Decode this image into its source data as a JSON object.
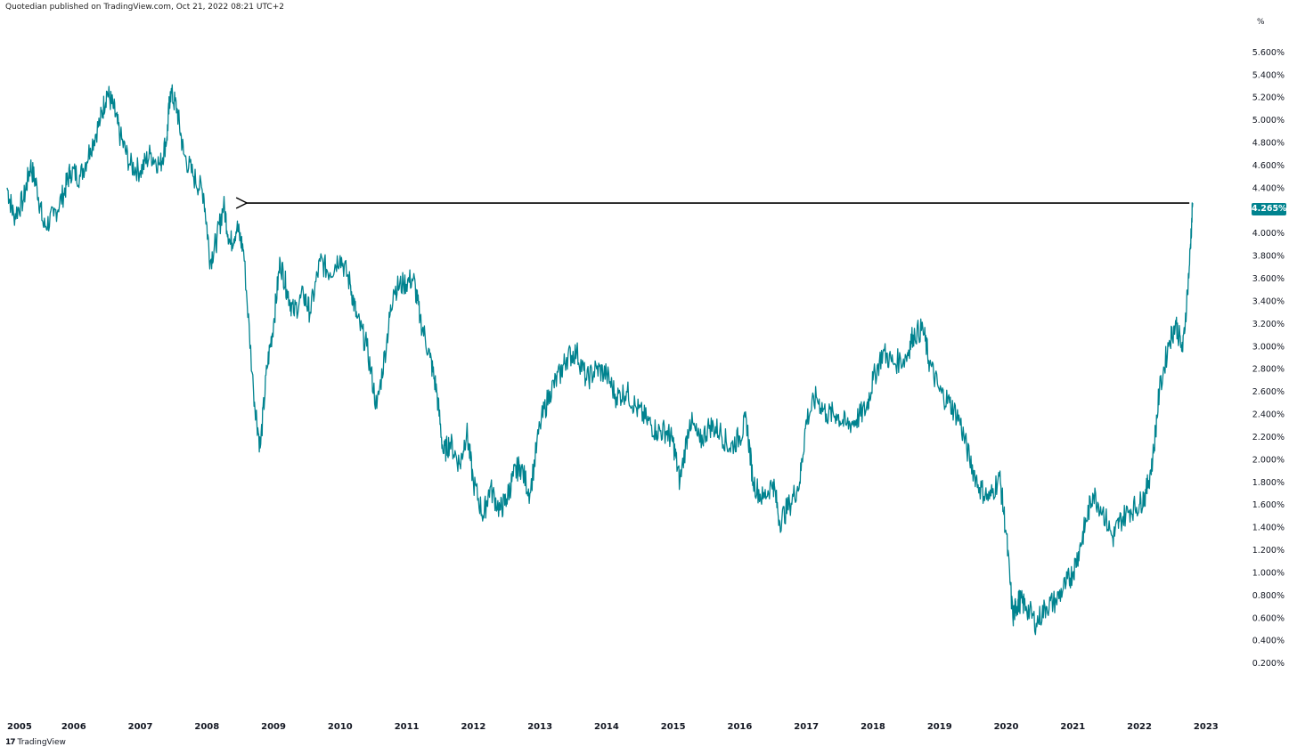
{
  "header": {
    "publisher_text": "Quotedian published on TradingView.com, Oct 21, 2022 08:21 UTC+2"
  },
  "footer": {
    "logo_text": "TradingView",
    "logo_mark": "17"
  },
  "colors": {
    "line": "#00838f",
    "arrow": "#000000",
    "badge": "#00838f"
  },
  "chart_data": {
    "type": "line",
    "title": "",
    "xlabel": "",
    "ylabel": "%",
    "ylim": [
      0.0,
      5.8
    ],
    "xlim": [
      2005.0,
      2023.35
    ],
    "y_ticks": [
      "0.200%",
      "0.400%",
      "0.600%",
      "0.800%",
      "1.000%",
      "1.200%",
      "1.400%",
      "1.600%",
      "1.800%",
      "2.000%",
      "2.200%",
      "2.400%",
      "2.600%",
      "2.800%",
      "3.000%",
      "3.200%",
      "3.400%",
      "3.600%",
      "3.800%",
      "4.000%",
      "4.200%",
      "4.400%",
      "4.600%",
      "4.800%",
      "5.000%",
      "5.200%",
      "5.400%",
      "5.600%"
    ],
    "y_tick_values": [
      0.2,
      0.4,
      0.6,
      0.8,
      1.0,
      1.2,
      1.4,
      1.6,
      1.8,
      2.0,
      2.2,
      2.4,
      2.6,
      2.8,
      3.0,
      3.2,
      3.4,
      3.6,
      3.8,
      4.0,
      4.2,
      4.4,
      4.6,
      4.8,
      5.0,
      5.2,
      5.4,
      5.6
    ],
    "x_ticks": [
      "2005",
      "2006",
      "2007",
      "2008",
      "2009",
      "2010",
      "2011",
      "2012",
      "2013",
      "2014",
      "2015",
      "2016",
      "2017",
      "2018",
      "2019",
      "2020",
      "2021",
      "2022",
      "2023"
    ],
    "x_tick_values": [
      2005,
      2006,
      2007,
      2008,
      2009,
      2010,
      2011,
      2012,
      2013,
      2014,
      2015,
      2016,
      2017,
      2018,
      2019,
      2020,
      2021,
      2022,
      2023
    ],
    "last_value_label": "4.265%",
    "last_value": 4.265,
    "series": [
      {
        "x": [
          2005.0,
          2005.1,
          2005.25,
          2005.35,
          2005.45,
          2005.55,
          2005.7,
          2005.85,
          2005.95,
          2006.1,
          2006.25,
          2006.4,
          2006.5,
          2006.6,
          2006.7,
          2006.85,
          2007.0,
          2007.15,
          2007.3,
          2007.4,
          2007.45,
          2007.55,
          2007.65,
          2007.8,
          2007.95,
          2008.05,
          2008.15,
          2008.25,
          2008.35,
          2008.45,
          2008.55,
          2008.7,
          2008.8,
          2008.9,
          2009.0,
          2009.1,
          2009.2,
          2009.3,
          2009.45,
          2009.55,
          2009.7,
          2009.85,
          2010.0,
          2010.15,
          2010.25,
          2010.4,
          2010.55,
          2010.7,
          2010.8,
          2010.95,
          2011.1,
          2011.2,
          2011.35,
          2011.45,
          2011.55,
          2011.65,
          2011.8,
          2011.9,
          2012.0,
          2012.15,
          2012.25,
          2012.4,
          2012.5,
          2012.6,
          2012.7,
          2012.85,
          2013.0,
          2013.15,
          2013.3,
          2013.4,
          2013.55,
          2013.7,
          2013.85,
          2014.0,
          2014.15,
          2014.3,
          2014.45,
          2014.6,
          2014.75,
          2014.9,
          2015.0,
          2015.1,
          2015.25,
          2015.4,
          2015.55,
          2015.7,
          2015.85,
          2016.0,
          2016.1,
          2016.2,
          2016.35,
          2016.5,
          2016.6,
          2016.75,
          2016.9,
          2017.0,
          2017.15,
          2017.3,
          2017.45,
          2017.6,
          2017.75,
          2017.9,
          2018.0,
          2018.15,
          2018.3,
          2018.5,
          2018.6,
          2018.75,
          2018.85,
          2019.0,
          2019.15,
          2019.3,
          2019.45,
          2019.6,
          2019.75,
          2019.9,
          2020.0,
          2020.1,
          2020.15,
          2020.2,
          2020.3,
          2020.45,
          2020.6,
          2020.75,
          2020.9,
          2021.0,
          2021.1,
          2021.2,
          2021.3,
          2021.45,
          2021.6,
          2021.7,
          2021.85,
          2022.0,
          2022.1,
          2022.2,
          2022.3,
          2022.45,
          2022.55,
          2022.65,
          2022.75,
          2022.8
        ],
        "values": [
          4.4,
          4.15,
          4.3,
          4.6,
          4.4,
          4.05,
          4.15,
          4.35,
          4.55,
          4.5,
          4.75,
          5.0,
          5.25,
          5.1,
          4.85,
          4.6,
          4.55,
          4.7,
          4.6,
          4.85,
          5.25,
          5.1,
          4.7,
          4.5,
          4.35,
          3.75,
          3.95,
          4.25,
          3.9,
          4.05,
          3.85,
          2.6,
          2.1,
          2.8,
          3.2,
          3.75,
          3.5,
          3.3,
          3.45,
          3.3,
          3.75,
          3.65,
          3.8,
          3.55,
          3.25,
          3.0,
          2.45,
          3.05,
          3.5,
          3.55,
          3.6,
          3.25,
          2.9,
          2.6,
          2.05,
          2.15,
          1.95,
          2.25,
          1.8,
          1.5,
          1.75,
          1.55,
          1.65,
          1.85,
          1.95,
          1.7,
          2.3,
          2.6,
          2.75,
          2.9,
          2.95,
          2.7,
          2.8,
          2.75,
          2.55,
          2.6,
          2.45,
          2.35,
          2.25,
          2.25,
          2.15,
          1.8,
          2.35,
          2.15,
          2.3,
          2.25,
          2.1,
          2.2,
          2.35,
          1.8,
          1.65,
          1.8,
          1.45,
          1.6,
          1.8,
          2.35,
          2.55,
          2.4,
          2.4,
          2.3,
          2.35,
          2.45,
          2.7,
          2.95,
          2.85,
          2.9,
          3.1,
          3.15,
          2.85,
          2.6,
          2.5,
          2.35,
          2.0,
          1.75,
          1.65,
          1.85,
          1.35,
          0.6,
          0.7,
          0.75,
          0.7,
          0.55,
          0.7,
          0.75,
          0.9,
          1.0,
          1.2,
          1.45,
          1.7,
          1.55,
          1.3,
          1.45,
          1.55,
          1.6,
          1.7,
          2.0,
          2.6,
          3.05,
          3.2,
          2.95,
          3.7,
          4.265
        ]
      }
    ],
    "annotation": {
      "type": "horizontal-arrow",
      "y": 4.265,
      "x_start": 2022.75,
      "x_end": 2008.6
    }
  }
}
